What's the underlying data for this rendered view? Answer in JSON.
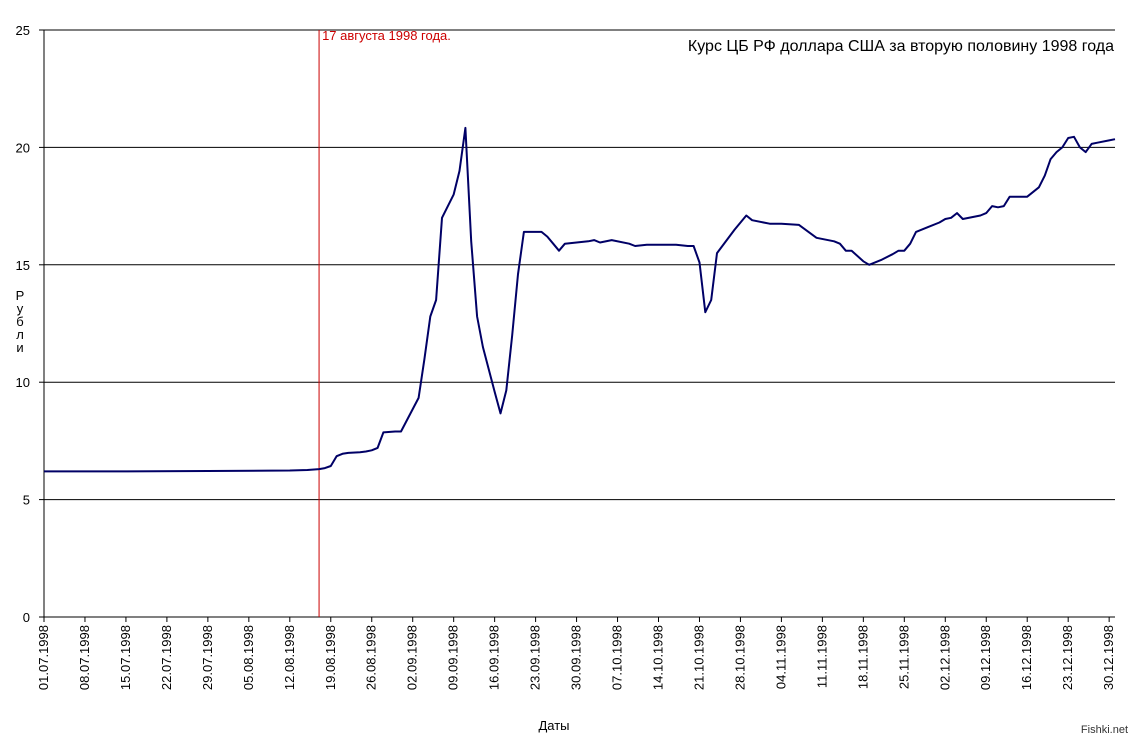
{
  "chart_data": {
    "type": "line",
    "title": "Курс ЦБ РФ доллара США за вторую половину 1998 года",
    "xlabel": "Даты",
    "ylabel": "Рубли",
    "ylim": [
      0,
      25
    ],
    "yticks": [
      0,
      5,
      10,
      15,
      20,
      25
    ],
    "grid": true,
    "x_tick_labels": [
      "01.07.1998",
      "08.07.1998",
      "15.07.1998",
      "22.07.1998",
      "29.07.1998",
      "05.08.1998",
      "12.08.1998",
      "19.08.1998",
      "26.08.1998",
      "02.09.1998",
      "09.09.1998",
      "16.09.1998",
      "23.09.1998",
      "30.09.1998",
      "07.10.1998",
      "14.10.1998",
      "21.10.1998",
      "28.10.1998",
      "04.11.1998",
      "11.11.1998",
      "18.11.1998",
      "25.11.1998",
      "02.12.1998",
      "09.12.1998",
      "16.12.1998",
      "23.12.1998",
      "30.12.1998"
    ],
    "x_start": "1998-07-01",
    "x_end": "1998-12-31",
    "event_marker": {
      "date": "1998-08-17",
      "label": "17 августа 1998 года.",
      "color": "#cc0000"
    },
    "line_color": "#000066",
    "series": [
      {
        "points": [
          [
            "1998-07-01",
            6.2
          ],
          [
            "1998-07-15",
            6.2
          ],
          [
            "1998-07-29",
            6.22
          ],
          [
            "1998-08-12",
            6.24
          ],
          [
            "1998-08-15",
            6.26
          ],
          [
            "1998-08-17",
            6.3
          ],
          [
            "1998-08-18",
            6.34
          ],
          [
            "1998-08-19",
            6.43
          ],
          [
            "1998-08-20",
            6.85
          ],
          [
            "1998-08-21",
            6.95
          ],
          [
            "1998-08-22",
            6.99
          ],
          [
            "1998-08-24",
            7.02
          ],
          [
            "1998-08-25",
            7.05
          ],
          [
            "1998-08-26",
            7.1
          ],
          [
            "1998-08-27",
            7.2
          ],
          [
            "1998-08-28",
            7.86
          ],
          [
            "1998-08-30",
            7.9
          ],
          [
            "1998-08-31",
            7.9
          ],
          [
            "1998-09-03",
            9.33
          ],
          [
            "1998-09-04",
            10.98
          ],
          [
            "1998-09-05",
            12.8
          ],
          [
            "1998-09-06",
            13.5
          ],
          [
            "1998-09-07",
            17.0
          ],
          [
            "1998-09-09",
            18.0
          ],
          [
            "1998-09-10",
            19.0
          ],
          [
            "1998-09-11",
            20.83
          ],
          [
            "1998-09-12",
            16.0
          ],
          [
            "1998-09-13",
            12.8
          ],
          [
            "1998-09-14",
            11.5
          ],
          [
            "1998-09-16",
            9.6
          ],
          [
            "1998-09-17",
            8.67
          ],
          [
            "1998-09-18",
            9.65
          ],
          [
            "1998-09-19",
            12.0
          ],
          [
            "1998-09-20",
            14.6
          ],
          [
            "1998-09-21",
            16.4
          ],
          [
            "1998-09-24",
            16.4
          ],
          [
            "1998-09-25",
            16.2
          ],
          [
            "1998-09-26",
            15.9
          ],
          [
            "1998-09-27",
            15.6
          ],
          [
            "1998-09-28",
            15.9
          ],
          [
            "1998-09-30",
            15.95
          ],
          [
            "1998-10-02",
            16.0
          ],
          [
            "1998-10-03",
            16.05
          ],
          [
            "1998-10-04",
            15.95
          ],
          [
            "1998-10-06",
            16.05
          ],
          [
            "1998-10-09",
            15.9
          ],
          [
            "1998-10-10",
            15.8
          ],
          [
            "1998-10-12",
            15.85
          ],
          [
            "1998-10-17",
            15.85
          ],
          [
            "1998-10-19",
            15.8
          ],
          [
            "1998-10-20",
            15.8
          ],
          [
            "1998-10-21",
            15.1
          ],
          [
            "1998-10-22",
            12.98
          ],
          [
            "1998-10-23",
            13.5
          ],
          [
            "1998-10-24",
            15.5
          ],
          [
            "1998-10-27",
            16.5
          ],
          [
            "1998-10-29",
            17.1
          ],
          [
            "1998-10-30",
            16.9
          ],
          [
            "1998-11-02",
            16.75
          ],
          [
            "1998-11-04",
            16.75
          ],
          [
            "1998-11-07",
            16.7
          ],
          [
            "1998-11-10",
            16.15
          ],
          [
            "1998-11-13",
            16.0
          ],
          [
            "1998-11-14",
            15.9
          ],
          [
            "1998-11-15",
            15.6
          ],
          [
            "1998-11-16",
            15.6
          ],
          [
            "1998-11-18",
            15.15
          ],
          [
            "1998-11-19",
            15.0
          ],
          [
            "1998-11-21",
            15.2
          ],
          [
            "1998-11-23",
            15.45
          ],
          [
            "1998-11-24",
            15.6
          ],
          [
            "1998-11-25",
            15.6
          ],
          [
            "1998-11-26",
            15.9
          ],
          [
            "1998-11-27",
            16.4
          ],
          [
            "1998-11-29",
            16.6
          ],
          [
            "1998-12-01",
            16.8
          ],
          [
            "1998-12-02",
            16.95
          ],
          [
            "1998-12-03",
            17.0
          ],
          [
            "1998-12-04",
            17.2
          ],
          [
            "1998-12-05",
            16.95
          ],
          [
            "1998-12-08",
            17.1
          ],
          [
            "1998-12-09",
            17.2
          ],
          [
            "1998-12-10",
            17.5
          ],
          [
            "1998-12-11",
            17.45
          ],
          [
            "1998-12-12",
            17.5
          ],
          [
            "1998-12-13",
            17.9
          ],
          [
            "1998-12-16",
            17.9
          ],
          [
            "1998-12-18",
            18.3
          ],
          [
            "1998-12-19",
            18.8
          ],
          [
            "1998-12-20",
            19.5
          ],
          [
            "1998-12-21",
            19.8
          ],
          [
            "1998-12-22",
            20.0
          ],
          [
            "1998-12-23",
            20.4
          ],
          [
            "1998-12-24",
            20.45
          ],
          [
            "1998-12-25",
            20.0
          ],
          [
            "1998-12-26",
            19.8
          ],
          [
            "1998-12-27",
            20.15
          ],
          [
            "1998-12-28",
            20.2
          ],
          [
            "1998-12-30",
            20.3
          ],
          [
            "1998-12-31",
            20.35
          ]
        ]
      }
    ]
  },
  "watermark": "Fishki.net"
}
